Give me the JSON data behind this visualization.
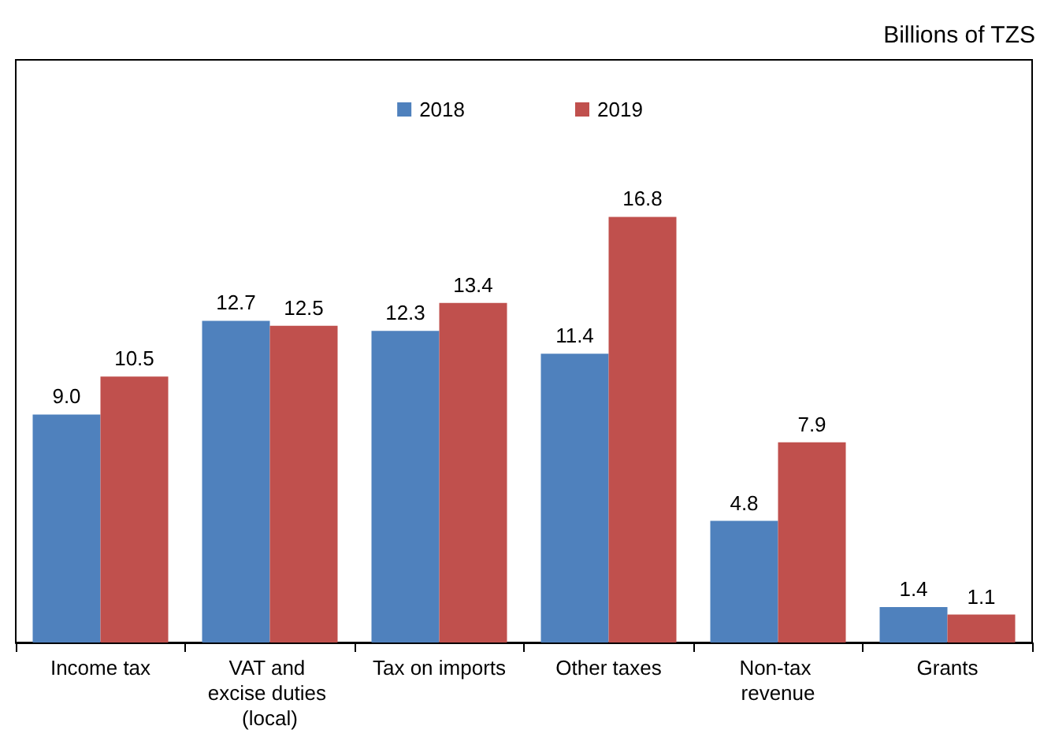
{
  "chart_data": {
    "type": "bar",
    "ylabel": "Billions of TZS",
    "categories": [
      "Income tax",
      "VAT and excise duties (local)",
      "Tax on imports",
      "Other taxes",
      "Non-tax revenue",
      "Grants"
    ],
    "series": [
      {
        "name": "2018",
        "color": "#4f81bd",
        "values": [
          9.0,
          12.7,
          12.3,
          11.4,
          4.8,
          1.4
        ],
        "value_labels": [
          "9.0",
          "12.7",
          "12.3",
          "11.4",
          "4.8",
          "1.4"
        ]
      },
      {
        "name": "2019",
        "color": "#c0504d",
        "values": [
          10.5,
          12.5,
          13.4,
          16.8,
          7.9,
          1.1
        ],
        "value_labels": [
          "10.5",
          "12.5",
          "13.4",
          "16.8",
          "7.9",
          "1.1"
        ]
      }
    ],
    "ylim": [
      0,
      23
    ],
    "legend": "top",
    "grid": false
  }
}
